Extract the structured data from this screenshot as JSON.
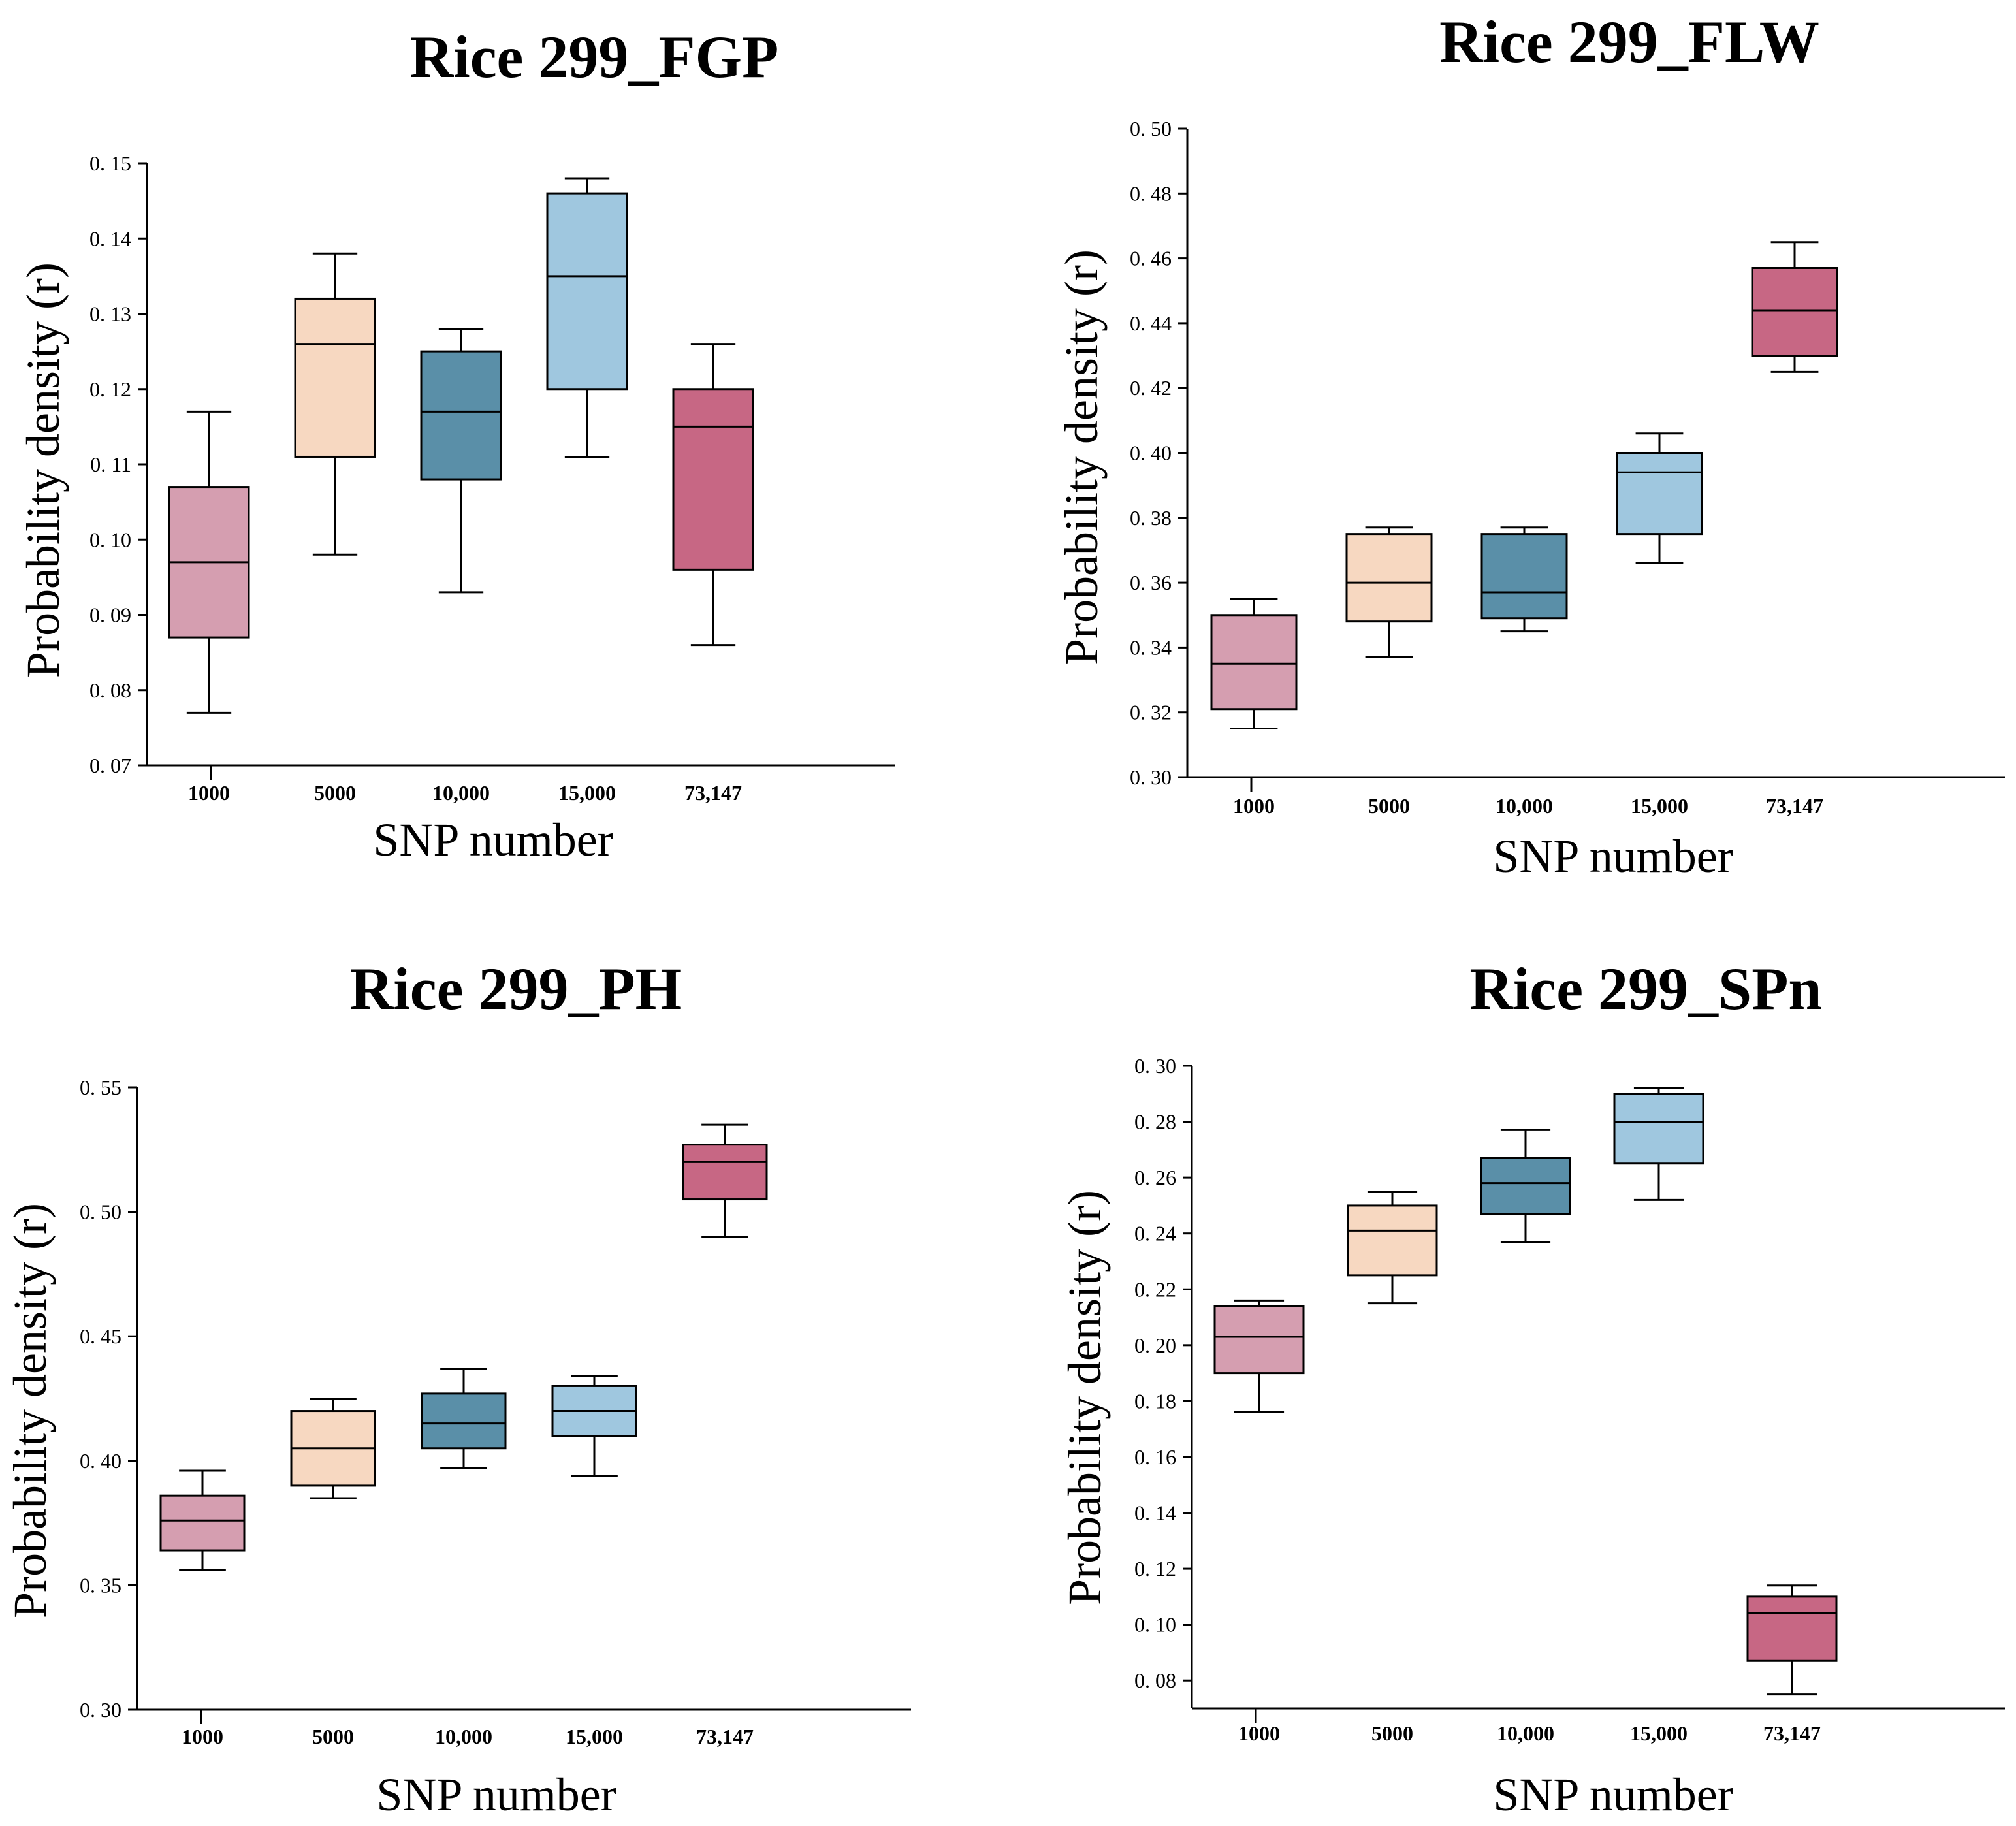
{
  "chart_data": [
    {
      "type": "box",
      "title": "Rice 299_FGP",
      "xlabel": "SNP number",
      "ylabel": "Probability density (r)",
      "ylim": [
        0.07,
        0.15
      ],
      "yticks": [
        "0.07",
        "0.08",
        "0.09",
        "0.10",
        "0.11",
        "0.12",
        "0.13",
        "0.14",
        "0.15"
      ],
      "categories": [
        "1000",
        "5000",
        "10,000",
        "15,000",
        "73,147"
      ],
      "boxes": [
        {
          "min": 0.077,
          "q1": 0.087,
          "median": 0.097,
          "q3": 0.107,
          "max": 0.117
        },
        {
          "min": 0.098,
          "q1": 0.111,
          "median": 0.126,
          "q3": 0.132,
          "max": 0.138
        },
        {
          "min": 0.093,
          "q1": 0.108,
          "median": 0.117,
          "q3": 0.125,
          "max": 0.128
        },
        {
          "min": 0.111,
          "q1": 0.12,
          "median": 0.135,
          "q3": 0.146,
          "max": 0.148
        },
        {
          "min": 0.086,
          "q1": 0.096,
          "median": 0.115,
          "q3": 0.12,
          "max": 0.126
        }
      ]
    },
    {
      "type": "box",
      "title": "Rice 299_FLW",
      "xlabel": "SNP number",
      "ylabel": "Probability density (r)",
      "ylim": [
        0.3,
        0.5
      ],
      "yticks": [
        "0.30",
        "0.32",
        "0.34",
        "0.36",
        "0.38",
        "0.40",
        "0.42",
        "0.44",
        "0.46",
        "0.48",
        "0.50"
      ],
      "categories": [
        "1000",
        "5000",
        "10,000",
        "15,000",
        "73,147"
      ],
      "boxes": [
        {
          "min": 0.315,
          "q1": 0.321,
          "median": 0.335,
          "q3": 0.35,
          "max": 0.355
        },
        {
          "min": 0.337,
          "q1": 0.348,
          "median": 0.36,
          "q3": 0.375,
          "max": 0.377
        },
        {
          "min": 0.345,
          "q1": 0.349,
          "median": 0.357,
          "q3": 0.375,
          "max": 0.377
        },
        {
          "min": 0.366,
          "q1": 0.375,
          "median": 0.394,
          "q3": 0.4,
          "max": 0.406
        },
        {
          "min": 0.425,
          "q1": 0.43,
          "median": 0.444,
          "q3": 0.457,
          "max": 0.465
        }
      ]
    },
    {
      "type": "box",
      "title": "Rice 299_PH",
      "xlabel": "SNP number",
      "ylabel": "Probability density (r)",
      "ylim": [
        0.3,
        0.55
      ],
      "yticks": [
        "0.30",
        "0.35",
        "0.40",
        "0.45",
        "0.50",
        "0.55"
      ],
      "categories": [
        "1000",
        "5000",
        "10,000",
        "15,000",
        "73,147"
      ],
      "boxes": [
        {
          "min": 0.356,
          "q1": 0.364,
          "median": 0.376,
          "q3": 0.386,
          "max": 0.396
        },
        {
          "min": 0.385,
          "q1": 0.39,
          "median": 0.405,
          "q3": 0.42,
          "max": 0.425
        },
        {
          "min": 0.397,
          "q1": 0.405,
          "median": 0.415,
          "q3": 0.427,
          "max": 0.437
        },
        {
          "min": 0.394,
          "q1": 0.41,
          "median": 0.42,
          "q3": 0.43,
          "max": 0.434
        },
        {
          "min": 0.49,
          "q1": 0.505,
          "median": 0.52,
          "q3": 0.527,
          "max": 0.535
        }
      ]
    },
    {
      "type": "box",
      "title": "Rice 299_SPn",
      "xlabel": "SNP number",
      "ylabel": "Probability density (r)",
      "ylim": [
        0.07,
        0.3
      ],
      "yticks": [
        "0.08",
        "0.10",
        "0.12",
        "0.14",
        "0.16",
        "0.18",
        "0.20",
        "0.22",
        "0.24",
        "0.26",
        "0.28",
        "0.30"
      ],
      "categories": [
        "1000",
        "5000",
        "10,000",
        "15,000",
        "73,147"
      ],
      "boxes": [
        {
          "min": 0.176,
          "q1": 0.19,
          "median": 0.203,
          "q3": 0.214,
          "max": 0.216
        },
        {
          "min": 0.215,
          "q1": 0.225,
          "median": 0.241,
          "q3": 0.25,
          "max": 0.255
        },
        {
          "min": 0.237,
          "q1": 0.247,
          "median": 0.258,
          "q3": 0.267,
          "max": 0.277
        },
        {
          "min": 0.252,
          "q1": 0.265,
          "median": 0.28,
          "q3": 0.29,
          "max": 0.292
        },
        {
          "min": 0.075,
          "q1": 0.087,
          "median": 0.104,
          "q3": 0.11,
          "max": 0.114
        }
      ]
    }
  ],
  "colors": [
    "#d59eb0",
    "#f7d8c1",
    "#5a8fa8",
    "#9fc7df",
    "#c76784"
  ]
}
